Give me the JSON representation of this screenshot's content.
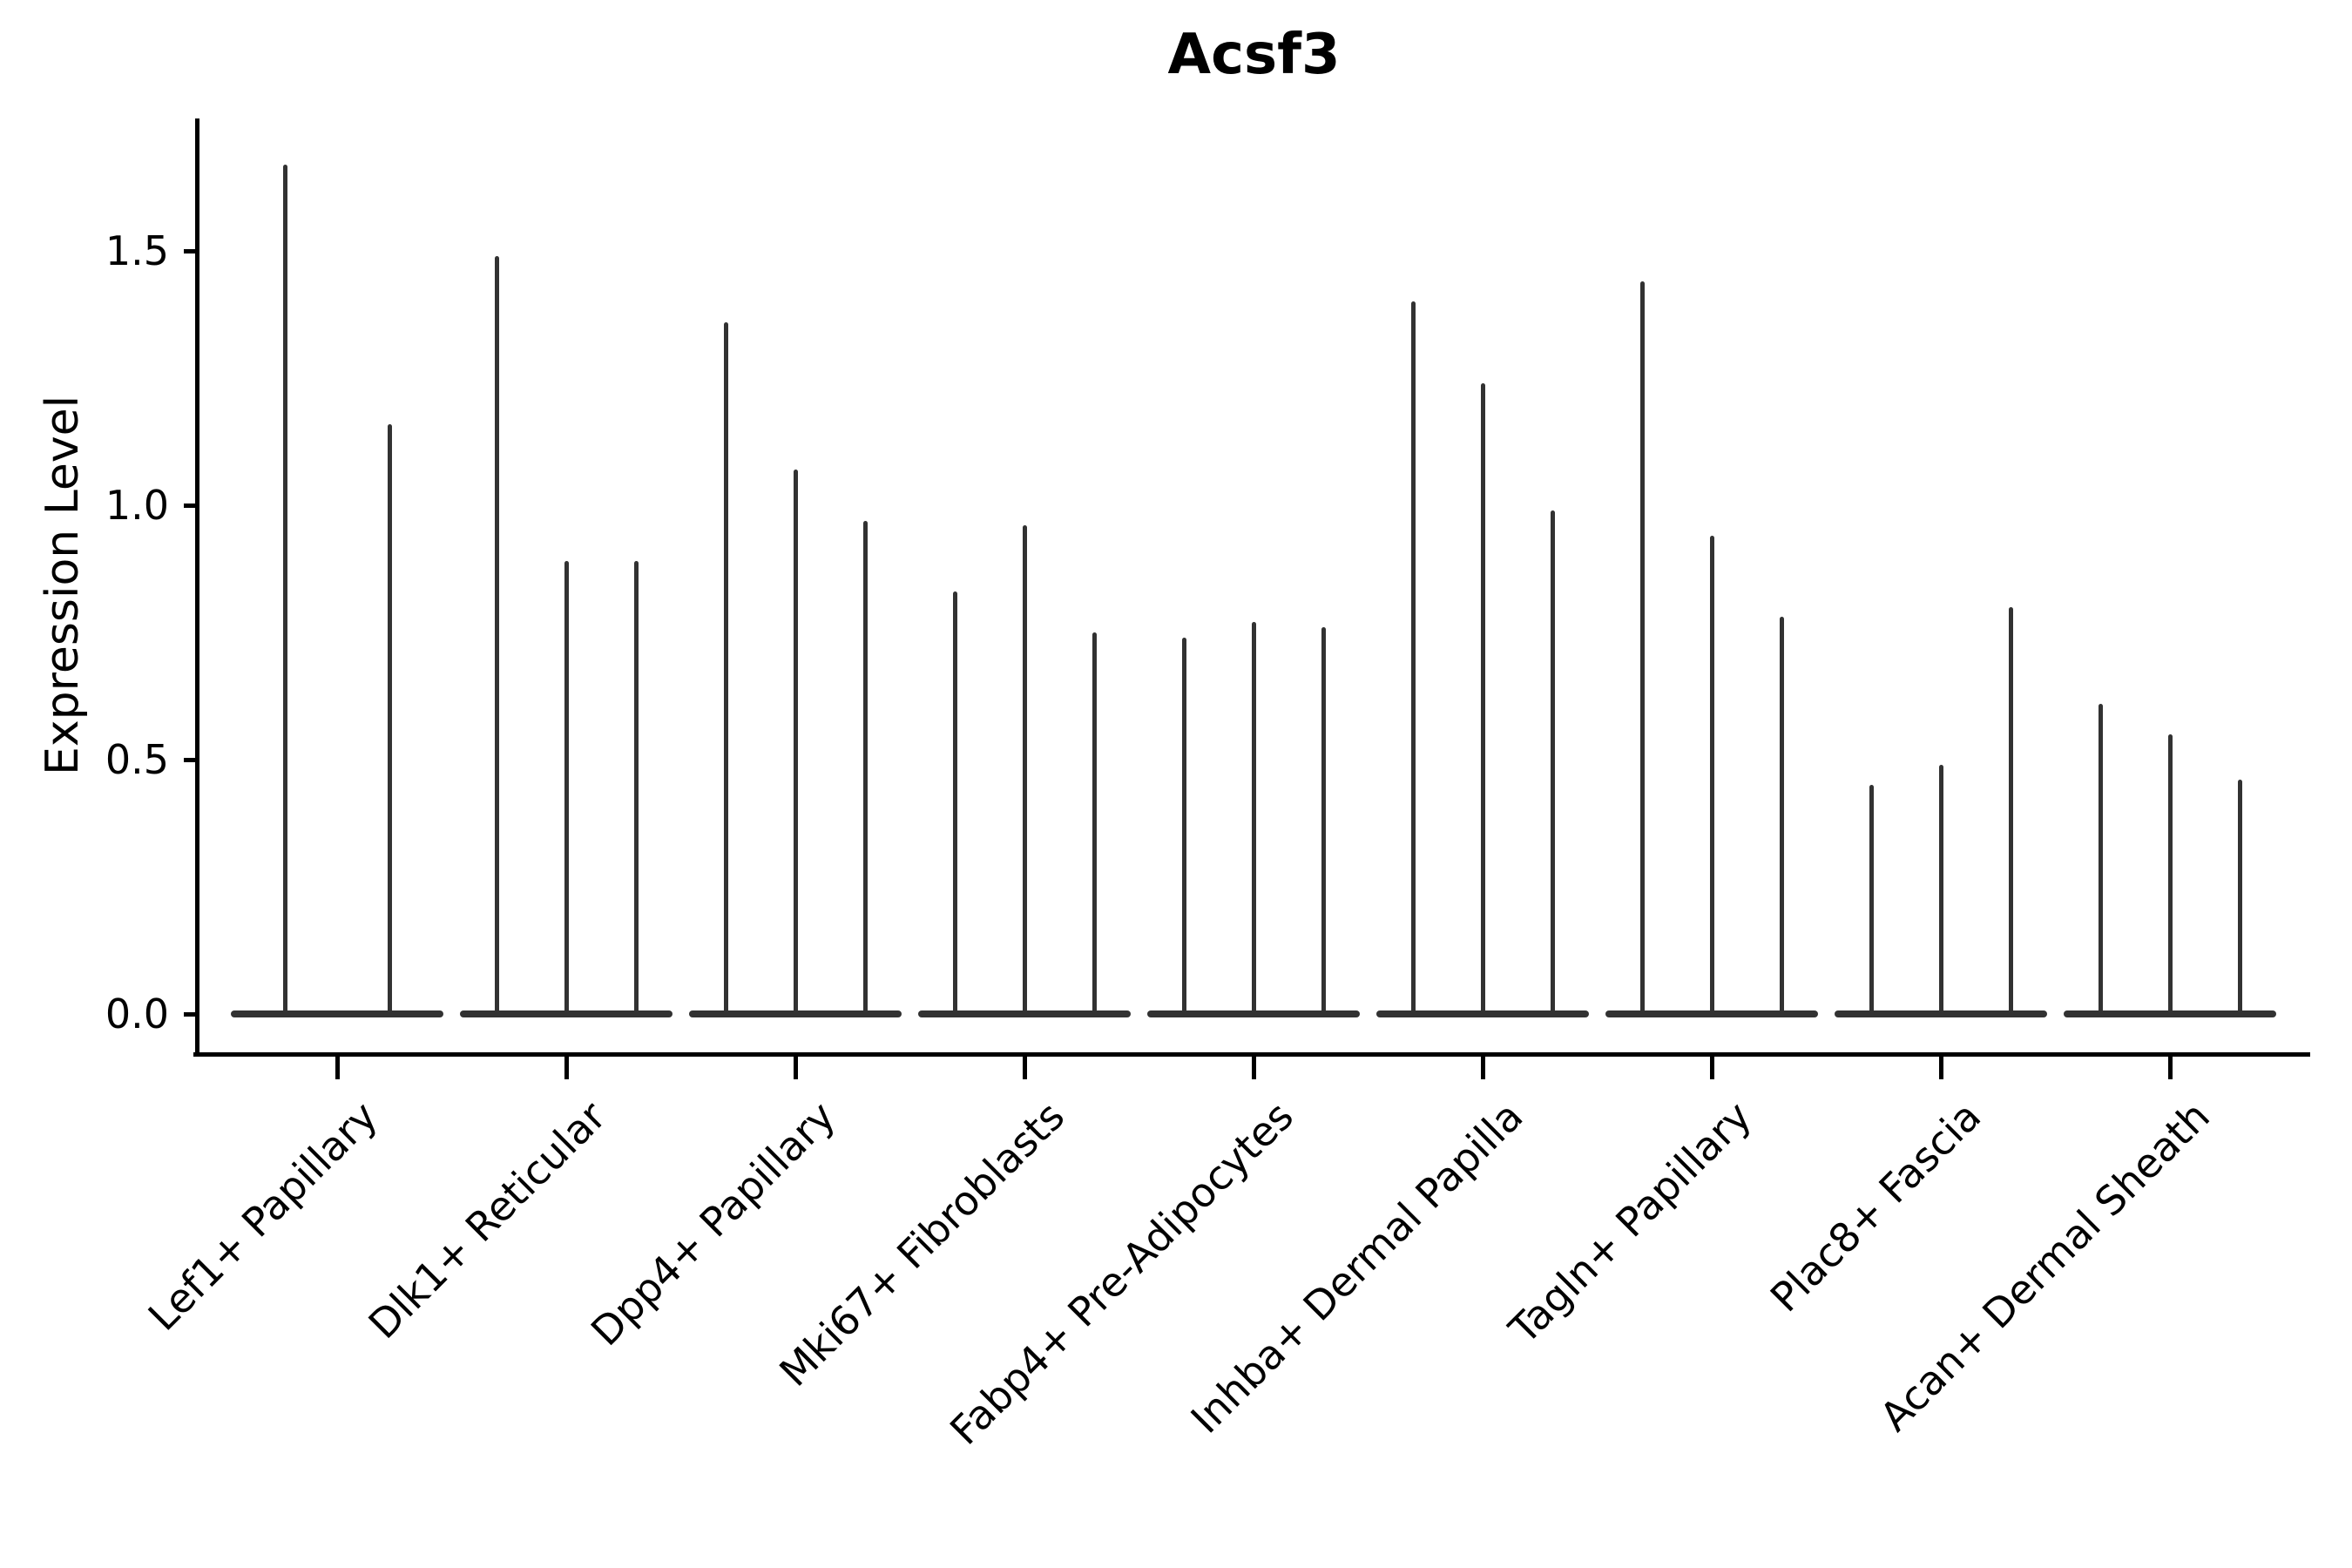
{
  "title": "Acsf3",
  "axes": {
    "ylabel": "Expression Level",
    "yticks": [
      {
        "label": "0.0",
        "value": 0.0
      },
      {
        "label": "0.5",
        "value": 0.5
      },
      {
        "label": "1.0",
        "value": 1.0
      },
      {
        "label": "1.5",
        "value": 1.5
      }
    ],
    "ylim": [
      -0.08,
      1.76
    ]
  },
  "colors": {
    "violin": "#323232",
    "axis": "#000000",
    "text": "#000000",
    "background": "#ffffff"
  },
  "chart_data": {
    "type": "violin",
    "title": "Acsf3",
    "xlabel": "",
    "ylabel": "Expression Level",
    "ylim": [
      -0.08,
      1.76
    ],
    "yticks": [
      0.0,
      0.5,
      1.0,
      1.5
    ],
    "grid": false,
    "legend": "none",
    "categories": [
      "Lef1+ Papillary",
      "Dlk1+ Reticular",
      "Dpp4+ Papillary",
      "Mki67+ Fibroblasts",
      "Fabp4+ Pre-Adipocytes",
      "Inhba+ Dermal Papilla",
      "Tagln+ Papillary",
      "Plac8+ Fascia",
      "Acan+ Dermal Sheath"
    ],
    "series": [
      {
        "category": "Lef1+ Papillary",
        "violin_peaks": [
          1.67,
          1.16
        ]
      },
      {
        "category": "Dlk1+ Reticular",
        "violin_peaks": [
          1.49,
          0.89,
          0.89
        ]
      },
      {
        "category": "Dpp4+ Papillary",
        "violin_peaks": [
          1.36,
          1.07,
          0.97
        ]
      },
      {
        "category": "Mki67+ Fibroblasts",
        "violin_peaks": [
          0.83,
          0.96,
          0.75
        ]
      },
      {
        "category": "Fabp4+ Pre-Adipocytes",
        "violin_peaks": [
          0.74,
          0.77,
          0.76
        ]
      },
      {
        "category": "Inhba+ Dermal Papilla",
        "violin_peaks": [
          1.4,
          1.24,
          0.99
        ]
      },
      {
        "category": "Tagln+ Papillary",
        "violin_peaks": [
          1.44,
          0.94,
          0.78
        ]
      },
      {
        "category": "Plac8+ Fascia",
        "violin_peaks": [
          0.45,
          0.49,
          0.8
        ]
      },
      {
        "category": "Acan+ Dermal Sheath",
        "violin_peaks": [
          0.61,
          0.55,
          0.46
        ]
      }
    ]
  }
}
